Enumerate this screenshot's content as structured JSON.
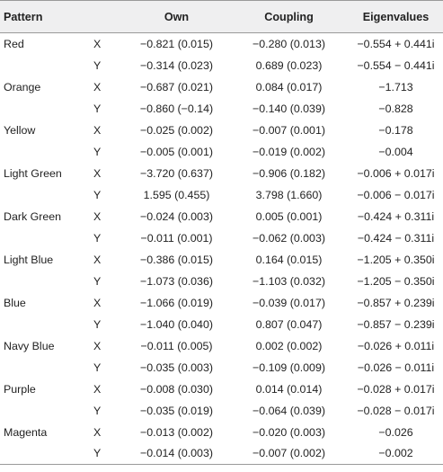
{
  "headers": {
    "pattern": "Pattern",
    "own": "Own",
    "coupling": "Coupling",
    "eigenvalues": "Eigenvalues"
  },
  "rows": [
    {
      "pattern": "Red",
      "x": {
        "var": "X",
        "own": "−0.821 (0.015)",
        "coupling": "−0.280 (0.013)",
        "eig": "−0.554 + 0.441i"
      },
      "y": {
        "var": "Y",
        "own": "−0.314 (0.023)",
        "coupling": "0.689 (0.023)",
        "eig": "−0.554 − 0.441i"
      }
    },
    {
      "pattern": "Orange",
      "x": {
        "var": "X",
        "own": "−0.687 (0.021)",
        "coupling": "0.084 (0.017)",
        "eig": "−1.713"
      },
      "y": {
        "var": "Y",
        "own": "−0.860 (−0.14)",
        "coupling": "−0.140 (0.039)",
        "eig": "−0.828"
      }
    },
    {
      "pattern": "Yellow",
      "x": {
        "var": "X",
        "own": "−0.025 (0.002)",
        "coupling": "−0.007 (0.001)",
        "eig": "−0.178"
      },
      "y": {
        "var": "Y",
        "own": "−0.005 (0.001)",
        "coupling": "−0.019 (0.002)",
        "eig": "−0.004"
      }
    },
    {
      "pattern": "Light Green",
      "x": {
        "var": "X",
        "own": "−3.720 (0.637)",
        "coupling": "−0.906 (0.182)",
        "eig": "−0.006 + 0.017i"
      },
      "y": {
        "var": "Y",
        "own": "1.595 (0.455)",
        "coupling": "3.798 (1.660)",
        "eig": "−0.006 − 0.017i"
      }
    },
    {
      "pattern": "Dark Green",
      "x": {
        "var": "X",
        "own": "−0.024 (0.003)",
        "coupling": "0.005 (0.001)",
        "eig": "−0.424 + 0.311i"
      },
      "y": {
        "var": "Y",
        "own": "−0.011 (0.001)",
        "coupling": "−0.062 (0.003)",
        "eig": "−0.424 − 0.311i"
      }
    },
    {
      "pattern": "Light Blue",
      "x": {
        "var": "X",
        "own": "−0.386 (0.015)",
        "coupling": "0.164 (0.015)",
        "eig": "−1.205 + 0.350i"
      },
      "y": {
        "var": "Y",
        "own": "−1.073 (0.036)",
        "coupling": "−1.103 (0.032)",
        "eig": "−1.205 − 0.350i"
      }
    },
    {
      "pattern": "Blue",
      "x": {
        "var": "X",
        "own": "−1.066 (0.019)",
        "coupling": "−0.039 (0.017)",
        "eig": "−0.857 + 0.239i"
      },
      "y": {
        "var": "Y",
        "own": "−1.040 (0.040)",
        "coupling": "0.807 (0.047)",
        "eig": "−0.857 − 0.239i"
      }
    },
    {
      "pattern": "Navy Blue",
      "x": {
        "var": "X",
        "own": "−0.011 (0.005)",
        "coupling": "0.002 (0.002)",
        "eig": "−0.026 + 0.011i"
      },
      "y": {
        "var": "Y",
        "own": "−0.035 (0.003)",
        "coupling": "−0.109 (0.009)",
        "eig": "−0.026 − 0.011i"
      }
    },
    {
      "pattern": "Purple",
      "x": {
        "var": "X",
        "own": "−0.008 (0.030)",
        "coupling": "0.014 (0.014)",
        "eig": "−0.028 + 0.017i"
      },
      "y": {
        "var": "Y",
        "own": "−0.035 (0.019)",
        "coupling": "−0.064 (0.039)",
        "eig": "−0.028 − 0.017i"
      }
    },
    {
      "pattern": "Magenta",
      "x": {
        "var": "X",
        "own": "−0.013 (0.002)",
        "coupling": "−0.020 (0.003)",
        "eig": "−0.026"
      },
      "y": {
        "var": "Y",
        "own": "−0.014 (0.003)",
        "coupling": "−0.007 (0.002)",
        "eig": "−0.002"
      }
    }
  ]
}
